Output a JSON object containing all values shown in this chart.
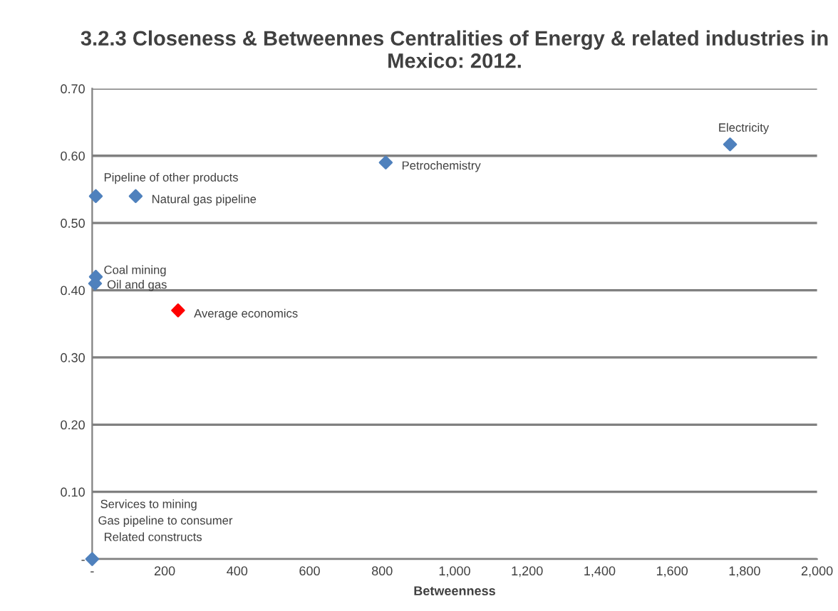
{
  "chart_data": {
    "type": "scatter",
    "title": "3.2.3 Closeness & Betweennes Centralities of Energy & related industries in Mexico: 2012.",
    "xlabel": "Betweenness",
    "series": [
      {
        "color": "#4f81bd",
        "x": [
          1760,
          810,
          10,
          120,
          10,
          8,
          0
        ],
        "values": [
          0.617,
          0.59,
          0.54,
          0.54,
          0.42,
          0.41,
          0
        ]
      },
      {
        "color": "#ff0000",
        "x": [
          237
        ],
        "values": [
          0.37
        ]
      }
    ],
    "annotations": [
      {
        "text": "Electricity",
        "x": 1760,
        "y": 0.617
      },
      {
        "text": "Petrochemistry",
        "x": 810,
        "y": 0.59
      },
      {
        "text": "Pipeline of other products",
        "x": 10,
        "y": 0.54
      },
      {
        "text": "Natural gas pipeline",
        "x": 120,
        "y": 0.54
      },
      {
        "text": "Coal mining",
        "x": 10,
        "y": 0.42
      },
      {
        "text": "Oil and gas",
        "x": 8,
        "y": 0.41
      },
      {
        "text": "Average economics",
        "x": 237,
        "y": 0.37
      },
      "Services to mining",
      "Gas pipeline to consumer",
      "Related constructs"
    ],
    "xlim": [
      0,
      2000
    ],
    "ylim": [
      0,
      0.7
    ],
    "xticks": [
      {
        "value": 0,
        "label": "-"
      },
      200,
      400,
      600,
      800,
      {
        "value": 1000,
        "label": "1,000"
      },
      {
        "value": 1200,
        "label": "1,200"
      },
      {
        "value": 1400,
        "label": "1,400"
      },
      {
        "value": 1600,
        "label": "1,600"
      },
      {
        "value": 1800,
        "label": "1,800"
      },
      {
        "value": 2000,
        "label": "2,000"
      }
    ],
    "yticks": [
      {
        "value": 0,
        "label": "-"
      },
      {
        "value": 0.1,
        "label": "0.10"
      },
      {
        "value": 0.2,
        "label": "0.20"
      },
      {
        "value": 0.3,
        "label": "0.30"
      },
      {
        "value": 0.4,
        "label": "0.40"
      },
      {
        "value": 0.5,
        "label": "0.50"
      },
      {
        "value": 0.6,
        "label": "0.60"
      },
      {
        "value": 0.7,
        "label": "0.70"
      }
    ],
    "grid": "y",
    "marker": "diamond"
  }
}
